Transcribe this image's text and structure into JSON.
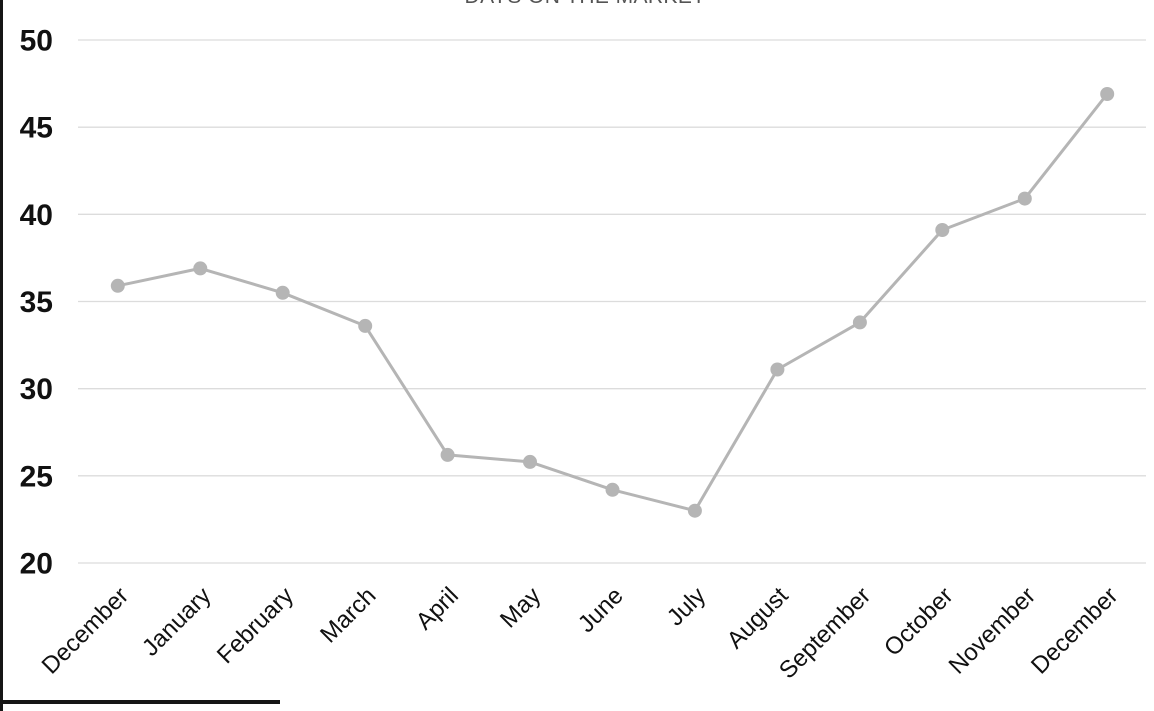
{
  "chart_data": {
    "type": "line",
    "title": "DAYS ON THE MARKET",
    "categories": [
      "December",
      "January",
      "February",
      "March",
      "April",
      "May",
      "June",
      "July",
      "August",
      "September",
      "October",
      "November",
      "December"
    ],
    "values": [
      35.9,
      36.9,
      35.5,
      33.6,
      26.2,
      25.8,
      24.2,
      23.0,
      31.1,
      33.8,
      39.1,
      40.9,
      46.9
    ],
    "xlabel": "",
    "ylabel": "",
    "ylim": [
      20,
      50
    ],
    "yticks": [
      20,
      25,
      30,
      35,
      40,
      45,
      50
    ],
    "grid": true,
    "legend": false,
    "colors": {
      "line": "#b5b5b5",
      "marker": "#b5b5b5",
      "gridline": "#dcdcdc",
      "tick_label": "#111111",
      "title": "#545454",
      "frame_border": "#161616"
    }
  }
}
